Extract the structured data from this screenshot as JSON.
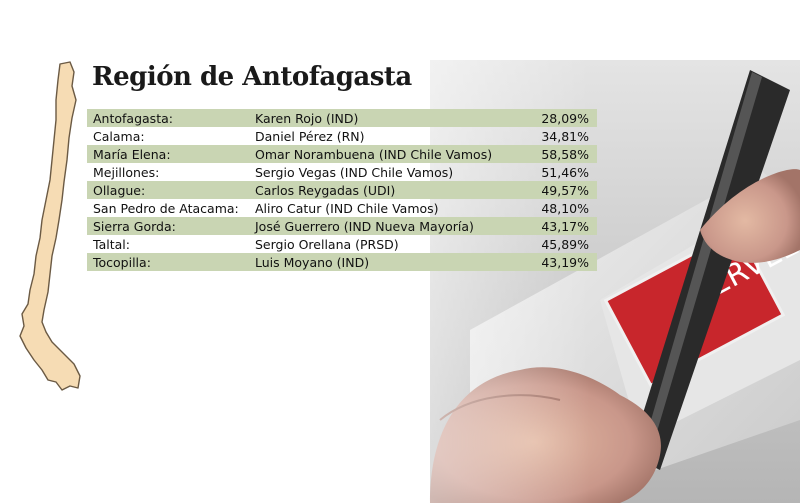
{
  "title": "Región de Antofagasta",
  "logo_text": "SERVEL",
  "results": [
    {
      "municipality": "Antofagasta:",
      "candidate": "Karen Rojo (IND)",
      "percent": "28,09%"
    },
    {
      "municipality": "Calama:",
      "candidate": "Daniel Pérez (RN)",
      "percent": "34,81%"
    },
    {
      "municipality": "María Elena:",
      "candidate": "Omar Norambuena (IND Chile Vamos)",
      "percent": "58,58%"
    },
    {
      "municipality": "Mejillones:",
      "candidate": "Sergio Vegas (IND Chile Vamos)",
      "percent": "51,46%"
    },
    {
      "municipality": "Ollague:",
      "candidate": "Carlos Reygadas (UDI)",
      "percent": "49,57%"
    },
    {
      "municipality": "San Pedro de Atacama:",
      "candidate": "Aliro Catur (IND Chile Vamos)",
      "percent": "48,10%"
    },
    {
      "municipality": "Sierra Gorda:",
      "candidate": "José Guerrero (IND Nueva Mayoría)",
      "percent": "43,17%"
    },
    {
      "municipality": "Taltal:",
      "candidate": "Sergio Orellana (PRSD)",
      "percent": "45,89%"
    },
    {
      "municipality": "Tocopilla:",
      "candidate": "Luis Moyano (IND)",
      "percent": "43,19%"
    }
  ],
  "colors": {
    "row_shade": "#c9d5b3",
    "map_fill": "#f6dcb4",
    "map_stroke": "#6b5a44",
    "servel_red": "#c8262c"
  }
}
